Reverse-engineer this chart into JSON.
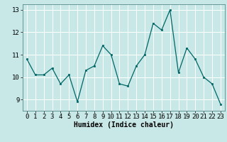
{
  "x": [
    0,
    1,
    2,
    3,
    4,
    5,
    6,
    7,
    8,
    9,
    10,
    11,
    12,
    13,
    14,
    15,
    16,
    17,
    18,
    19,
    20,
    21,
    22,
    23
  ],
  "y": [
    10.8,
    10.1,
    10.1,
    10.4,
    9.7,
    10.1,
    8.9,
    10.3,
    10.5,
    11.4,
    11.0,
    9.7,
    9.6,
    10.5,
    11.0,
    12.4,
    12.1,
    13.0,
    10.2,
    11.3,
    10.8,
    10.0,
    9.7,
    8.8
  ],
  "xlabel": "Humidex (Indice chaleur)",
  "ylim": [
    8.5,
    13.25
  ],
  "xlim": [
    -0.5,
    23.5
  ],
  "yticks": [
    9,
    10,
    11,
    12,
    13
  ],
  "xticks": [
    0,
    1,
    2,
    3,
    4,
    5,
    6,
    7,
    8,
    9,
    10,
    11,
    12,
    13,
    14,
    15,
    16,
    17,
    18,
    19,
    20,
    21,
    22,
    23
  ],
  "line_color": "#006666",
  "marker_color": "#006666",
  "bg_color": "#c8e8e8",
  "grid_color": "#b0d8d8",
  "axis_label_fontsize": 7,
  "tick_fontsize": 6.5
}
